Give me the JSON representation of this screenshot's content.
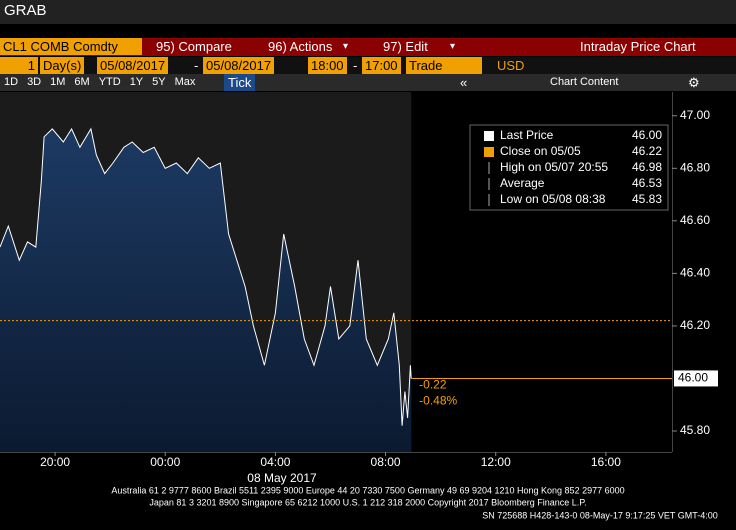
{
  "ui": {
    "title": "GRAB",
    "ticker": "CL1 COMB Comdty",
    "menu": [
      "95) Compare",
      "96) Actions",
      "97) Edit"
    ],
    "panel_title": "Intraday Price Chart",
    "period": "1",
    "period_unit": "Day(s)",
    "start_date": "05/08/2017",
    "end_date": "05/08/2017",
    "start_time": "18:00",
    "end_time": "17:00",
    "field": "Trade",
    "currency": "USD",
    "ranges": [
      "1D",
      "3D",
      "1M",
      "6M",
      "YTD",
      "1Y",
      "5Y",
      "Max"
    ],
    "frequency": "Tick",
    "chart_content": "Chart Content",
    "footer": [
      "Australia 61 2 9777 8600 Brazil 5511 2395 9000 Europe 44 20 7330 7500 Germany 49 69 9204 1210 Hong Kong 852 2977 6000",
      "Japan 81 3 3201 8900        Singapore 65 6212 1000        U.S. 1 212 318 2000        Copyright 2017 Bloomberg Finance L.P.",
      "SN 725688 H428-143-0 08-May-17  9:17:25 VET  GMT-4:00"
    ]
  },
  "chart_data": {
    "type": "line",
    "color": "#ffffff",
    "xlabel": "08 May 2017",
    "x": [
      0,
      0.3,
      0.7,
      1.0,
      1.3,
      1.5,
      1.6,
      1.9,
      2.3,
      2.6,
      2.9,
      3.3,
      3.5,
      3.8,
      4.1,
      4.5,
      4.8,
      5.2,
      5.6,
      6.0,
      6.4,
      6.8,
      7.2,
      7.6,
      8.0,
      8.3,
      8.9,
      9.2,
      9.6,
      10.0,
      10.3,
      10.7,
      11.05,
      11.4,
      11.8,
      12.0,
      12.3,
      12.7,
      13.0,
      13.3,
      13.7,
      14.1,
      14.3,
      14.5,
      14.6,
      14.7,
      14.8,
      14.9,
      14.93
    ],
    "values": [
      46.5,
      46.58,
      46.45,
      46.52,
      46.5,
      46.75,
      46.92,
      46.95,
      46.9,
      46.95,
      46.88,
      46.95,
      46.85,
      46.78,
      46.82,
      46.88,
      46.9,
      46.86,
      46.88,
      46.8,
      46.82,
      46.78,
      46.84,
      46.8,
      46.82,
      46.55,
      46.35,
      46.2,
      46.05,
      46.25,
      46.55,
      46.35,
      46.15,
      46.05,
      46.2,
      46.35,
      46.15,
      46.2,
      46.45,
      46.15,
      46.05,
      46.15,
      46.25,
      46.05,
      45.82,
      45.95,
      45.85,
      46.05,
      46.0
    ],
    "xlim": [
      0,
      24.4
    ],
    "xticks": [
      {
        "value": 2,
        "label": "20:00"
      },
      {
        "value": 6,
        "label": "00:00"
      },
      {
        "value": 10,
        "label": "04:00"
      },
      {
        "value": 14,
        "label": "08:00"
      },
      {
        "value": 18,
        "label": "12:00"
      },
      {
        "value": 22,
        "label": "16:00"
      }
    ],
    "ylim": [
      45.72,
      47.06
    ],
    "yticks": [
      {
        "value": 45.8,
        "label": "45.80"
      },
      {
        "value": 46.2,
        "label": "46.20"
      },
      {
        "value": 46.4,
        "label": "46.40"
      },
      {
        "value": 46.6,
        "label": "46.60"
      },
      {
        "value": 46.8,
        "label": "46.80"
      },
      {
        "value": 47,
        "label": "47.00"
      }
    ],
    "legend": [
      {
        "name": "Last Price",
        "value": 46,
        "value_label": "46.00"
      },
      {
        "name": "Close on 05/05",
        "value": 46.22,
        "value_label": "46.22"
      },
      {
        "name": "High on 05/07 20:55",
        "value": 46.98,
        "value_label": "46.98"
      },
      {
        "name": "Average",
        "value": 46.53,
        "value_label": "46.53"
      },
      {
        "name": "Low on 05/08 08:38",
        "value": 45.83,
        "value_label": "45.83"
      }
    ],
    "change": {
      "values": [
        -0.22,
        -0.48
      ],
      "value_labels": [
        "-0.22",
        "-0.48%"
      ]
    }
  }
}
